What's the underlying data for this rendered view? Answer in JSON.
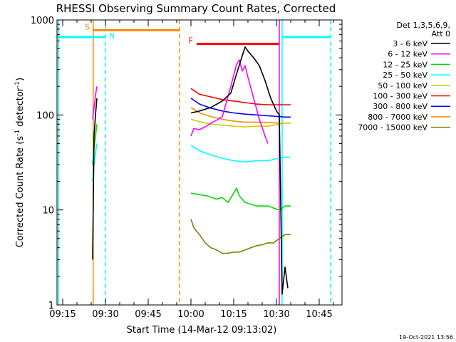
{
  "chart_data": {
    "type": "line",
    "title": "RHESSI Observing Summary Count Rates, Corrected",
    "xlabel": "Start Time (14-Mar-12 09:13:02)",
    "ylabel": "Corrected Count Rate (s⁻¹ detector⁻¹)",
    "ylabel_parts": {
      "base": "Corrected Count Rate (s",
      "exp1": "-1",
      "mid": " detector",
      "exp2": "-1",
      "close": ")"
    },
    "yscale": "log",
    "ylim": [
      1,
      1000
    ],
    "xlim_minutes": [
      0,
      100
    ],
    "x_ticks": [
      {
        "minute": 2,
        "label": "09:15"
      },
      {
        "minute": 17,
        "label": "09:30"
      },
      {
        "minute": 32,
        "label": "09:45"
      },
      {
        "minute": 47,
        "label": "10:00"
      },
      {
        "minute": 62,
        "label": "10:15"
      },
      {
        "minute": 77,
        "label": "10:30"
      },
      {
        "minute": 92,
        "label": "10:45"
      }
    ],
    "y_ticks": [
      {
        "value": 1,
        "label": "1"
      },
      {
        "value": 10,
        "label": "10"
      },
      {
        "value": 100,
        "label": "100"
      },
      {
        "value": 1000,
        "label": "1000"
      }
    ],
    "legend": {
      "header_line1": "Det 1,3,5,6,9,",
      "header_line2": "Att 0",
      "entries": [
        {
          "label": "3 - 6 keV",
          "color": "#000000"
        },
        {
          "label": "6 - 12 keV",
          "color": "#ff00ff"
        },
        {
          "label": "12 - 25 keV",
          "color": "#00dd00"
        },
        {
          "label": "25 - 50 keV",
          "color": "#00ffff"
        },
        {
          "label": "50 - 100 keV",
          "color": "#cccc00"
        },
        {
          "label": "100 - 300 keV",
          "color": "#ff0000"
        },
        {
          "label": "300 - 800 keV",
          "color": "#0000ff"
        },
        {
          "label": "800 - 7000 keV",
          "color": "#ff8800"
        },
        {
          "label": "7000 - 15000 keV",
          "color": "#808000"
        }
      ]
    },
    "series": [
      {
        "name": "3 - 6 keV",
        "color": "#000000",
        "segments": [
          [
            [
              12.5,
              3
            ],
            [
              13,
              60
            ],
            [
              13.5,
              100
            ],
            [
              14,
              150
            ]
          ],
          [
            [
              47,
              105
            ],
            [
              50,
              110
            ],
            [
              54,
              120
            ],
            [
              58,
              140
            ],
            [
              61,
              170
            ],
            [
              63,
              270
            ],
            [
              65,
              420
            ],
            [
              66,
              520
            ],
            [
              67,
              470
            ],
            [
              69,
              400
            ],
            [
              71,
              330
            ],
            [
              73,
              230
            ],
            [
              75,
              150
            ],
            [
              77,
              110
            ],
            [
              78,
              100
            ],
            [
              79,
              1.3
            ],
            [
              80,
              2.5
            ],
            [
              81,
              1.5
            ]
          ]
        ]
      },
      {
        "name": "6 - 12 keV",
        "color": "#ff00ff",
        "segments": [
          [
            [
              12.5,
              90
            ],
            [
              13,
              120
            ],
            [
              13.5,
              160
            ],
            [
              14,
              200
            ]
          ],
          [
            [
              47,
              60
            ],
            [
              48,
              72
            ],
            [
              50,
              70
            ],
            [
              52,
              75
            ],
            [
              54,
              82
            ],
            [
              56,
              88
            ],
            [
              58,
              96
            ],
            [
              61,
              200
            ],
            [
              63,
              340
            ],
            [
              64,
              380
            ],
            [
              65,
              290
            ],
            [
              66,
              330
            ],
            [
              67,
              250
            ],
            [
              69,
              150
            ],
            [
              71,
              90
            ],
            [
              73,
              60
            ],
            [
              74,
              50
            ]
          ]
        ]
      },
      {
        "name": "12 - 25 keV",
        "color": "#00dd00",
        "segments": [
          [
            [
              12.5,
              30
            ],
            [
              13,
              45
            ],
            [
              13.5,
              60
            ],
            [
              14,
              80
            ]
          ],
          [
            [
              47,
              15
            ],
            [
              50,
              14.5
            ],
            [
              53,
              14
            ],
            [
              56,
              13
            ],
            [
              58,
              13.5
            ],
            [
              60,
              12
            ],
            [
              62,
              15
            ],
            [
              63,
              17
            ],
            [
              64,
              14
            ],
            [
              66,
              12
            ],
            [
              70,
              11
            ],
            [
              74,
              11
            ],
            [
              78,
              10
            ],
            [
              80,
              11
            ],
            [
              82,
              11
            ]
          ]
        ]
      },
      {
        "name": "25 - 50 keV",
        "color": "#00ffff",
        "segments": [
          [
            [
              12.5,
              20
            ],
            [
              13,
              30
            ],
            [
              13.5,
              40
            ],
            [
              14,
              50
            ]
          ],
          [
            [
              47,
              48
            ],
            [
              50,
              42
            ],
            [
              54,
              38
            ],
            [
              58,
              35
            ],
            [
              62,
              33
            ],
            [
              66,
              32
            ],
            [
              70,
              33
            ],
            [
              74,
              33
            ],
            [
              78,
              35
            ],
            [
              80,
              36
            ],
            [
              82,
              36
            ]
          ]
        ]
      },
      {
        "name": "50 - 100 keV",
        "color": "#cccc00",
        "segments": [
          [
            [
              47,
              90
            ],
            [
              50,
              85
            ],
            [
              54,
              80
            ],
            [
              58,
              78
            ],
            [
              62,
              76
            ],
            [
              66,
              75
            ],
            [
              70,
              76
            ],
            [
              74,
              76
            ],
            [
              78,
              80
            ],
            [
              80,
              82
            ],
            [
              82,
              82
            ]
          ]
        ]
      },
      {
        "name": "100 - 300 keV",
        "color": "#ff0000",
        "segments": [
          [
            [
              47,
              190
            ],
            [
              50,
              165
            ],
            [
              54,
              155
            ],
            [
              58,
              145
            ],
            [
              62,
              140
            ],
            [
              66,
              135
            ],
            [
              70,
              130
            ],
            [
              74,
              128
            ],
            [
              78,
              128
            ],
            [
              80,
              128
            ],
            [
              82,
              128
            ]
          ]
        ]
      },
      {
        "name": "300 - 800 keV",
        "color": "#0000ff",
        "segments": [
          [
            [
              47,
              150
            ],
            [
              50,
              130
            ],
            [
              54,
              118
            ],
            [
              58,
              110
            ],
            [
              62,
              105
            ],
            [
              66,
              102
            ],
            [
              70,
              100
            ],
            [
              74,
              98
            ],
            [
              78,
              96
            ],
            [
              80,
              95
            ],
            [
              82,
              95
            ]
          ]
        ]
      },
      {
        "name": "800 - 7000 keV",
        "color": "#ff8800",
        "segments": [
          [
            [
              47,
              120
            ],
            [
              50,
              105
            ],
            [
              54,
              96
            ],
            [
              58,
              90
            ],
            [
              62,
              86
            ],
            [
              66,
              84
            ],
            [
              70,
              84
            ],
            [
              74,
              83
            ],
            [
              78,
              82
            ],
            [
              80,
              82
            ],
            [
              82,
              82
            ]
          ]
        ]
      },
      {
        "name": "7000 - 15000 keV",
        "color": "#808000",
        "segments": [
          [
            [
              47,
              8
            ],
            [
              48,
              6.5
            ],
            [
              50,
              5.5
            ],
            [
              52,
              4.5
            ],
            [
              54,
              4
            ],
            [
              56,
              3.8
            ],
            [
              58,
              3.5
            ],
            [
              60,
              3.5
            ],
            [
              62,
              3.6
            ],
            [
              64,
              3.6
            ],
            [
              66,
              3.8
            ],
            [
              68,
              4
            ],
            [
              70,
              4.2
            ],
            [
              72,
              4.3
            ],
            [
              74,
              4.5
            ],
            [
              76,
              4.5
            ],
            [
              78,
              5
            ],
            [
              80,
              5.5
            ],
            [
              82,
              5.5
            ]
          ]
        ]
      }
    ],
    "bars": [
      {
        "label": "S",
        "color": "#ff8800",
        "value": 780,
        "start": 12.7,
        "end": 43
      },
      {
        "label": "F",
        "color": "#ff0000",
        "value": 560,
        "start": 49,
        "end": 78
      }
    ],
    "night_marker": {
      "label": "N",
      "color": "#00ffff",
      "value": 660,
      "segments": [
        [
          0,
          17
        ],
        [
          79,
          96
        ]
      ]
    },
    "vlines": [
      {
        "minute": 0.5,
        "color": "#00ffff",
        "style": "solid"
      },
      {
        "minute": 12.7,
        "color": "#ff8800",
        "style": "solid"
      },
      {
        "minute": 17,
        "color": "#00ffff",
        "style": "dashed"
      },
      {
        "minute": 43,
        "color": "#ff8800",
        "style": "dashed"
      },
      {
        "minute": 78,
        "color": "#ff00ff",
        "style": "solid"
      },
      {
        "minute": 79,
        "color": "#00ffff",
        "style": "solid"
      },
      {
        "minute": 96,
        "color": "#00ffff",
        "style": "dashed"
      }
    ],
    "footer_timestamp": "19-Oct-2021 13:56"
  }
}
